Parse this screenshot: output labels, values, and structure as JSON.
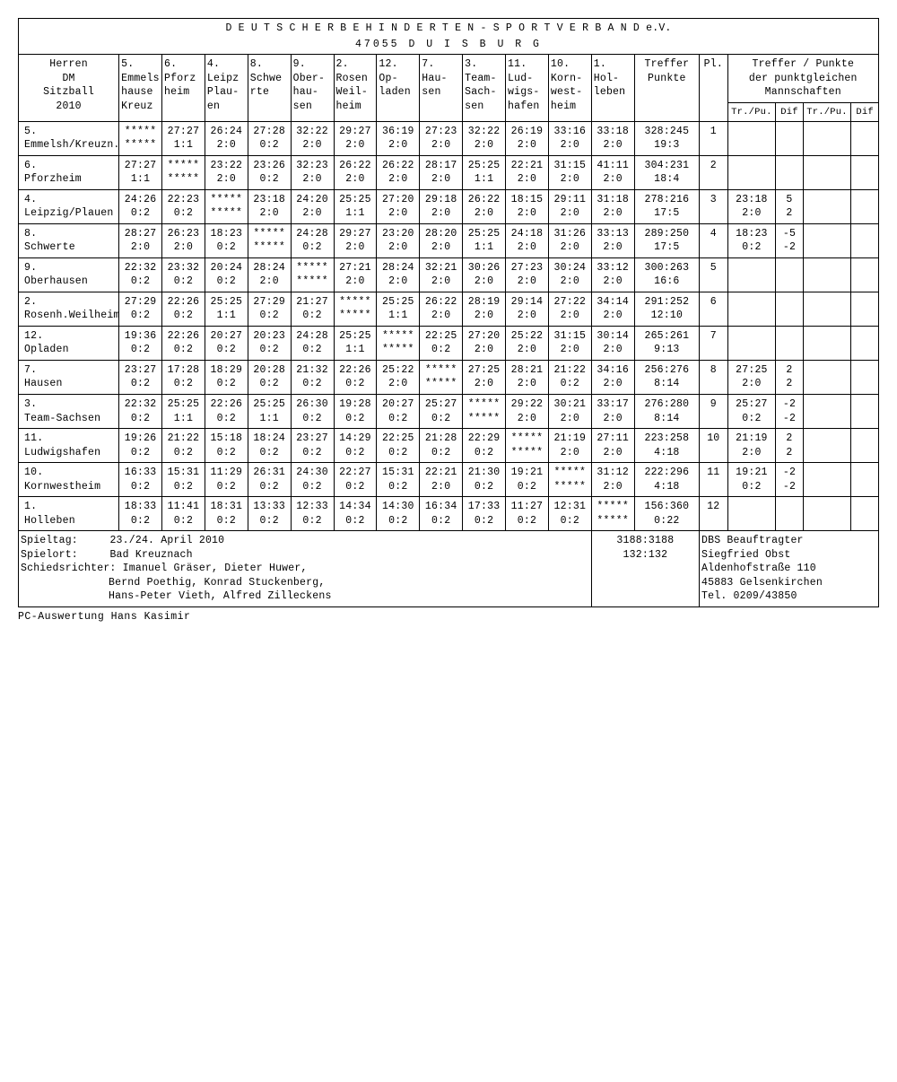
{
  "title_line1": "D E U T S C H E R   B E H I N D E R T E N -   S P O R T V E R B A N D e.V.",
  "title_line2": "47055  D U I S B U R G",
  "header": {
    "left": [
      "Herren",
      "DM",
      "Sitzball",
      "2010"
    ],
    "cols": [
      [
        "5.",
        "Emmels",
        "hause",
        "Kreuz"
      ],
      [
        "6.",
        "Pforz",
        "heim",
        ""
      ],
      [
        "4.",
        "Leipz",
        "Plau-",
        "en"
      ],
      [
        "8.",
        "Schwe",
        "rte",
        ""
      ],
      [
        "9.",
        "Ober-",
        "hau-",
        "sen"
      ],
      [
        "2.",
        "Rosen",
        "Weil-",
        "heim"
      ],
      [
        "12.",
        "Op-",
        "laden",
        ""
      ],
      [
        "7.",
        "Hau-",
        "sen",
        ""
      ],
      [
        "3.",
        "Team-",
        "Sach-",
        "sen"
      ],
      [
        "11.",
        "Lud-",
        "wigs-",
        "hafen"
      ],
      [
        "10.",
        "Korn-",
        "west-",
        "heim"
      ],
      [
        "1.",
        "Hol-",
        "leben",
        ""
      ]
    ],
    "treffer": [
      "Treffer",
      "Punkte"
    ],
    "pl": "Pl.",
    "tiebreak_title": [
      "Treffer / Punkte",
      "der punktgleichen",
      "Mannschaften"
    ],
    "tiebreak_sub": [
      "Tr./Pu.",
      "Dif",
      "Tr./Pu.",
      "Dif"
    ]
  },
  "rows": [
    {
      "name": [
        "5.",
        "Emmelsh/Kreuzn."
      ],
      "cells": [
        [
          "*****",
          "*****"
        ],
        [
          "27:27",
          "1:1"
        ],
        [
          "26:24",
          "2:0"
        ],
        [
          "27:28",
          "0:2"
        ],
        [
          "32:22",
          "2:0"
        ],
        [
          "29:27",
          "2:0"
        ],
        [
          "36:19",
          "2:0"
        ],
        [
          "27:23",
          "2:0"
        ],
        [
          "32:22",
          "2:0"
        ],
        [
          "26:19",
          "2:0"
        ],
        [
          "33:16",
          "2:0"
        ],
        [
          "33:18",
          "2:0"
        ]
      ],
      "tp": [
        "328:245",
        "19:3"
      ],
      "pl": "1",
      "tb": [
        "",
        "",
        "",
        ""
      ]
    },
    {
      "name": [
        "6.",
        "Pforzheim"
      ],
      "cells": [
        [
          "27:27",
          "1:1"
        ],
        [
          "*****",
          "*****"
        ],
        [
          "23:22",
          "2:0"
        ],
        [
          "23:26",
          "0:2"
        ],
        [
          "32:23",
          "2:0"
        ],
        [
          "26:22",
          "2:0"
        ],
        [
          "26:22",
          "2:0"
        ],
        [
          "28:17",
          "2:0"
        ],
        [
          "25:25",
          "1:1"
        ],
        [
          "22:21",
          "2:0"
        ],
        [
          "31:15",
          "2:0"
        ],
        [
          "41:11",
          "2:0"
        ]
      ],
      "tp": [
        "304:231",
        "18:4"
      ],
      "pl": "2",
      "tb": [
        "",
        "",
        "",
        ""
      ]
    },
    {
      "name": [
        "4.",
        "Leipzig/Plauen"
      ],
      "cells": [
        [
          "24:26",
          "0:2"
        ],
        [
          "22:23",
          "0:2"
        ],
        [
          "*****",
          "*****"
        ],
        [
          "23:18",
          "2:0"
        ],
        [
          "24:20",
          "2:0"
        ],
        [
          "25:25",
          "1:1"
        ],
        [
          "27:20",
          "2:0"
        ],
        [
          "29:18",
          "2:0"
        ],
        [
          "26:22",
          "2:0"
        ],
        [
          "18:15",
          "2:0"
        ],
        [
          "29:11",
          "2:0"
        ],
        [
          "31:18",
          "2:0"
        ]
      ],
      "tp": [
        "278:216",
        "17:5"
      ],
      "pl": "3",
      "tb": [
        "23:18",
        "5",
        "",
        ""
      ],
      "tb2": [
        "2:0",
        "2",
        "",
        ""
      ]
    },
    {
      "name": [
        "8.",
        "Schwerte"
      ],
      "cells": [
        [
          "28:27",
          "2:0"
        ],
        [
          "26:23",
          "2:0"
        ],
        [
          "18:23",
          "0:2"
        ],
        [
          "*****",
          "*****"
        ],
        [
          "24:28",
          "0:2"
        ],
        [
          "29:27",
          "2:0"
        ],
        [
          "23:20",
          "2:0"
        ],
        [
          "28:20",
          "2:0"
        ],
        [
          "25:25",
          "1:1"
        ],
        [
          "24:18",
          "2:0"
        ],
        [
          "31:26",
          "2:0"
        ],
        [
          "33:13",
          "2:0"
        ]
      ],
      "tp": [
        "289:250",
        "17:5"
      ],
      "pl": "4",
      "tb": [
        "18:23",
        "-5",
        "",
        ""
      ],
      "tb2": [
        "0:2",
        "-2",
        "",
        ""
      ]
    },
    {
      "name": [
        "9.",
        "Oberhausen"
      ],
      "cells": [
        [
          "22:32",
          "0:2"
        ],
        [
          "23:32",
          "0:2"
        ],
        [
          "20:24",
          "0:2"
        ],
        [
          "28:24",
          "2:0"
        ],
        [
          "*****",
          "*****"
        ],
        [
          "27:21",
          "2:0"
        ],
        [
          "28:24",
          "2:0"
        ],
        [
          "32:21",
          "2:0"
        ],
        [
          "30:26",
          "2:0"
        ],
        [
          "27:23",
          "2:0"
        ],
        [
          "30:24",
          "2:0"
        ],
        [
          "33:12",
          "2:0"
        ]
      ],
      "tp": [
        "300:263",
        "16:6"
      ],
      "pl": "5",
      "tb": [
        "",
        "",
        "",
        ""
      ]
    },
    {
      "name": [
        "2.",
        "Rosenh.Weilheim"
      ],
      "cells": [
        [
          "27:29",
          "0:2"
        ],
        [
          "22:26",
          "0:2"
        ],
        [
          "25:25",
          "1:1"
        ],
        [
          "27:29",
          "0:2"
        ],
        [
          "21:27",
          "0:2"
        ],
        [
          "*****",
          "*****"
        ],
        [
          "25:25",
          "1:1"
        ],
        [
          "26:22",
          "2:0"
        ],
        [
          "28:19",
          "2:0"
        ],
        [
          "29:14",
          "2:0"
        ],
        [
          "27:22",
          "2:0"
        ],
        [
          "34:14",
          "2:0"
        ]
      ],
      "tp": [
        "291:252",
        "12:10"
      ],
      "pl": "6",
      "tb": [
        "",
        "",
        "",
        ""
      ]
    },
    {
      "name": [
        "12.",
        "Opladen"
      ],
      "cells": [
        [
          "19:36",
          "0:2"
        ],
        [
          "22:26",
          "0:2"
        ],
        [
          "20:27",
          "0:2"
        ],
        [
          "20:23",
          "0:2"
        ],
        [
          "24:28",
          "0:2"
        ],
        [
          "25:25",
          "1:1"
        ],
        [
          "*****",
          "*****"
        ],
        [
          "22:25",
          "0:2"
        ],
        [
          "27:20",
          "2:0"
        ],
        [
          "25:22",
          "2:0"
        ],
        [
          "31:15",
          "2:0"
        ],
        [
          "30:14",
          "2:0"
        ]
      ],
      "tp": [
        "265:261",
        "9:13"
      ],
      "pl": "7",
      "tb": [
        "",
        "",
        "",
        ""
      ]
    },
    {
      "name": [
        "7.",
        "Hausen"
      ],
      "cells": [
        [
          "23:27",
          "0:2"
        ],
        [
          "17:28",
          "0:2"
        ],
        [
          "18:29",
          "0:2"
        ],
        [
          "20:28",
          "0:2"
        ],
        [
          "21:32",
          "0:2"
        ],
        [
          "22:26",
          "0:2"
        ],
        [
          "25:22",
          "2:0"
        ],
        [
          "*****",
          "*****"
        ],
        [
          "27:25",
          "2:0"
        ],
        [
          "28:21",
          "2:0"
        ],
        [
          "21:22",
          "0:2"
        ],
        [
          "34:16",
          "2:0"
        ]
      ],
      "tp": [
        "256:276",
        "8:14"
      ],
      "pl": "8",
      "tb": [
        "27:25",
        "2",
        "",
        ""
      ],
      "tb2": [
        "2:0",
        "2",
        "",
        ""
      ]
    },
    {
      "name": [
        "3.",
        "Team-Sachsen"
      ],
      "cells": [
        [
          "22:32",
          "0:2"
        ],
        [
          "25:25",
          "1:1"
        ],
        [
          "22:26",
          "0:2"
        ],
        [
          "25:25",
          "1:1"
        ],
        [
          "26:30",
          "0:2"
        ],
        [
          "19:28",
          "0:2"
        ],
        [
          "20:27",
          "0:2"
        ],
        [
          "25:27",
          "0:2"
        ],
        [
          "*****",
          "*****"
        ],
        [
          "29:22",
          "2:0"
        ],
        [
          "30:21",
          "2:0"
        ],
        [
          "33:17",
          "2:0"
        ]
      ],
      "tp": [
        "276:280",
        "8:14"
      ],
      "pl": "9",
      "tb": [
        "25:27",
        "-2",
        "",
        ""
      ],
      "tb2": [
        "0:2",
        "-2",
        "",
        ""
      ]
    },
    {
      "name": [
        "11.",
        "Ludwigshafen"
      ],
      "cells": [
        [
          "19:26",
          "0:2"
        ],
        [
          "21:22",
          "0:2"
        ],
        [
          "15:18",
          "0:2"
        ],
        [
          "18:24",
          "0:2"
        ],
        [
          "23:27",
          "0:2"
        ],
        [
          "14:29",
          "0:2"
        ],
        [
          "22:25",
          "0:2"
        ],
        [
          "21:28",
          "0:2"
        ],
        [
          "22:29",
          "0:2"
        ],
        [
          "*****",
          "*****"
        ],
        [
          "21:19",
          "2:0"
        ],
        [
          "27:11",
          "2:0"
        ]
      ],
      "tp": [
        "223:258",
        "4:18"
      ],
      "pl": "10",
      "tb": [
        "21:19",
        "2",
        "",
        ""
      ],
      "tb2": [
        "2:0",
        "2",
        "",
        ""
      ]
    },
    {
      "name": [
        "10.",
        "Kornwestheim"
      ],
      "cells": [
        [
          "16:33",
          "0:2"
        ],
        [
          "15:31",
          "0:2"
        ],
        [
          "11:29",
          "0:2"
        ],
        [
          "26:31",
          "0:2"
        ],
        [
          "24:30",
          "0:2"
        ],
        [
          "22:27",
          "0:2"
        ],
        [
          "15:31",
          "0:2"
        ],
        [
          "22:21",
          "2:0"
        ],
        [
          "21:30",
          "0:2"
        ],
        [
          "19:21",
          "0:2"
        ],
        [
          "*****",
          "*****"
        ],
        [
          "31:12",
          "2:0"
        ]
      ],
      "tp": [
        "222:296",
        "4:18"
      ],
      "pl": "11",
      "tb": [
        "19:21",
        "-2",
        "",
        ""
      ],
      "tb2": [
        "0:2",
        "-2",
        "",
        ""
      ]
    },
    {
      "name": [
        "1.",
        "Holleben"
      ],
      "cells": [
        [
          "18:33",
          "0:2"
        ],
        [
          "11:41",
          "0:2"
        ],
        [
          "18:31",
          "0:2"
        ],
        [
          "13:33",
          "0:2"
        ],
        [
          "12:33",
          "0:2"
        ],
        [
          "14:34",
          "0:2"
        ],
        [
          "14:30",
          "0:2"
        ],
        [
          "16:34",
          "0:2"
        ],
        [
          "17:33",
          "0:2"
        ],
        [
          "11:27",
          "0:2"
        ],
        [
          "12:31",
          "0:2"
        ],
        [
          "*****",
          "*****"
        ]
      ],
      "tp": [
        "156:360",
        "0:22"
      ],
      "pl": "12",
      "tb": [
        "",
        "",
        "",
        ""
      ]
    }
  ],
  "footer": {
    "labels": [
      "Spieltag:",
      "Spielort:",
      "Schiedsrichter:"
    ],
    "values": [
      "23./24. April 2010",
      "Bad Kreuznach",
      "Imanuel Gräser, Dieter Huwer,",
      "Bernd Poethig, Konrad Stuckenberg,",
      "Hans-Peter Vieth, Alfred Zilleckens"
    ],
    "totals": [
      "3188:3188",
      "132:132"
    ],
    "contact": [
      "DBS Beauftragter",
      "Siegfried Obst",
      "Aldenhofstraße 110",
      "45883 Gelsenkirchen",
      "Tel. 0209/43850"
    ]
  },
  "credit": "PC-Auswertung Hans Kasimir"
}
